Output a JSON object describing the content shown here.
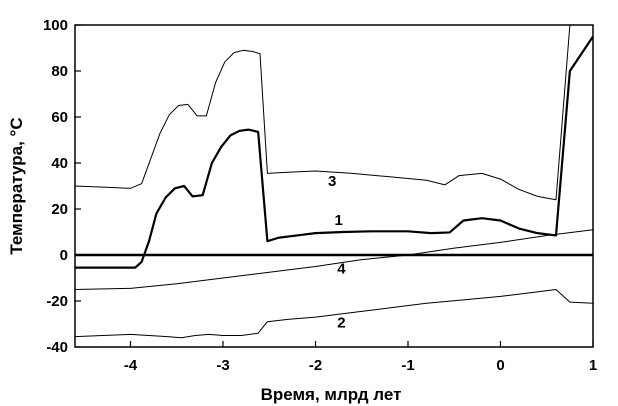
{
  "chart_data": {
    "type": "line",
    "title": "",
    "xlabel": "Время, млрд лет",
    "ylabel": "Температура, °С",
    "xlim": [
      -4.6,
      1
    ],
    "ylim": [
      -40,
      100
    ],
    "xticks": [
      -4,
      -3,
      -2,
      -1,
      0,
      1
    ],
    "yticks": [
      -40,
      -20,
      0,
      20,
      40,
      60,
      80,
      100
    ],
    "x_tick_labels": [
      "-4",
      "-3",
      "-2",
      "-1",
      "0",
      "1"
    ],
    "y_tick_labels": [
      "-40",
      "-20",
      "0",
      "20",
      "40",
      "60",
      "80",
      "100"
    ],
    "grid": false,
    "zero_line": true,
    "series": [
      {
        "name": "1",
        "points": [
          [
            -4.6,
            -5.5
          ],
          [
            -3.95,
            -5.5
          ],
          [
            -3.88,
            -3
          ],
          [
            -3.8,
            6
          ],
          [
            -3.72,
            18
          ],
          [
            -3.62,
            25
          ],
          [
            -3.52,
            29
          ],
          [
            -3.42,
            30
          ],
          [
            -3.33,
            25.5
          ],
          [
            -3.22,
            26
          ],
          [
            -3.12,
            40
          ],
          [
            -3.02,
            47
          ],
          [
            -2.92,
            52
          ],
          [
            -2.82,
            54
          ],
          [
            -2.72,
            54.5
          ],
          [
            -2.62,
            53.5
          ],
          [
            -2.52,
            6
          ],
          [
            -2.4,
            7.5
          ],
          [
            -2.2,
            8.5
          ],
          [
            -2.0,
            9.5
          ],
          [
            -1.7,
            10
          ],
          [
            -1.4,
            10.3
          ],
          [
            -1.0,
            10.3
          ],
          [
            -0.75,
            9.5
          ],
          [
            -0.55,
            9.8
          ],
          [
            -0.4,
            15
          ],
          [
            -0.2,
            16
          ],
          [
            0.0,
            15
          ],
          [
            0.2,
            11.5
          ],
          [
            0.4,
            9.5
          ],
          [
            0.6,
            8.5
          ],
          [
            0.75,
            80
          ],
          [
            1.0,
            95
          ]
        ]
      },
      {
        "name": "2",
        "points": [
          [
            -4.6,
            -35.5
          ],
          [
            -4.3,
            -35
          ],
          [
            -4.0,
            -34.5
          ],
          [
            -3.8,
            -35
          ],
          [
            -3.6,
            -35.5
          ],
          [
            -3.45,
            -36
          ],
          [
            -3.3,
            -35
          ],
          [
            -3.15,
            -34.5
          ],
          [
            -3.0,
            -35
          ],
          [
            -2.8,
            -35
          ],
          [
            -2.62,
            -34
          ],
          [
            -2.52,
            -29
          ],
          [
            -2.3,
            -28
          ],
          [
            -2.0,
            -27
          ],
          [
            -1.6,
            -25
          ],
          [
            -1.2,
            -23
          ],
          [
            -0.8,
            -21
          ],
          [
            -0.4,
            -19.5
          ],
          [
            0.0,
            -18
          ],
          [
            0.3,
            -16.5
          ],
          [
            0.6,
            -15
          ],
          [
            0.75,
            -20.5
          ],
          [
            1.0,
            -21
          ]
        ]
      },
      {
        "name": "3",
        "points": [
          [
            -4.6,
            30
          ],
          [
            -4.3,
            29.5
          ],
          [
            -4.0,
            29
          ],
          [
            -3.88,
            31
          ],
          [
            -3.78,
            42
          ],
          [
            -3.68,
            53
          ],
          [
            -3.58,
            61
          ],
          [
            -3.48,
            65
          ],
          [
            -3.38,
            65.5
          ],
          [
            -3.28,
            60.5
          ],
          [
            -3.18,
            60.5
          ],
          [
            -3.08,
            75
          ],
          [
            -2.98,
            84
          ],
          [
            -2.88,
            88
          ],
          [
            -2.78,
            89
          ],
          [
            -2.68,
            88.5
          ],
          [
            -2.6,
            87.5
          ],
          [
            -2.52,
            35.5
          ],
          [
            -2.3,
            36
          ],
          [
            -2.0,
            36.5
          ],
          [
            -1.6,
            35.5
          ],
          [
            -1.2,
            34
          ],
          [
            -0.8,
            32.5
          ],
          [
            -0.6,
            30.5
          ],
          [
            -0.45,
            34.5
          ],
          [
            -0.2,
            35.5
          ],
          [
            0.0,
            33
          ],
          [
            0.2,
            28.5
          ],
          [
            0.4,
            25.5
          ],
          [
            0.6,
            24
          ],
          [
            0.75,
            100
          ],
          [
            1.0,
            100
          ]
        ]
      },
      {
        "name": "4",
        "points": [
          [
            -4.6,
            -15
          ],
          [
            -4.0,
            -14.5
          ],
          [
            -3.5,
            -12.5
          ],
          [
            -3.0,
            -10
          ],
          [
            -2.5,
            -7.5
          ],
          [
            -2.0,
            -5
          ],
          [
            -1.5,
            -2
          ],
          [
            -1.0,
            0
          ],
          [
            -0.5,
            3
          ],
          [
            0.0,
            5.5
          ],
          [
            0.5,
            8.5
          ],
          [
            1.0,
            11
          ]
        ]
      }
    ],
    "curve_labels": [
      {
        "text": "1",
        "x": -1.75,
        "y": 13
      },
      {
        "text": "2",
        "x": -1.72,
        "y": -31.5
      },
      {
        "text": "3",
        "x": -1.82,
        "y": 30
      },
      {
        "text": "4",
        "x": -1.72,
        "y": -8
      }
    ]
  }
}
